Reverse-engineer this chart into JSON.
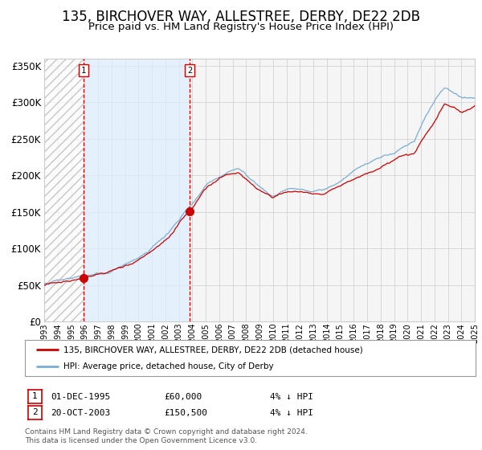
{
  "title": "135, BIRCHOVER WAY, ALLESTREE, DERBY, DE22 2DB",
  "subtitle": "Price paid vs. HM Land Registry's House Price Index (HPI)",
  "legend_line1": "135, BIRCHOVER WAY, ALLESTREE, DERBY, DE22 2DB (detached house)",
  "legend_line2": "HPI: Average price, detached house, City of Derby",
  "annotation1_date": "01-DEC-1995",
  "annotation1_price": "£60,000",
  "annotation1_hpi": "4% ↓ HPI",
  "annotation2_date": "20-OCT-2003",
  "annotation2_price": "£150,500",
  "annotation2_hpi": "4% ↓ HPI",
  "footnote": "Contains HM Land Registry data © Crown copyright and database right 2024.\nThis data is licensed under the Open Government Licence v3.0.",
  "start_year": 1993,
  "end_year": 2025,
  "ylim": [
    0,
    360000
  ],
  "yticks": [
    0,
    50000,
    100000,
    150000,
    200000,
    250000,
    300000,
    350000
  ],
  "sale1_year": 1995.917,
  "sale1_price": 60000,
  "sale2_year": 2003.792,
  "sale2_price": 150500,
  "red_color": "#cc0000",
  "blue_color": "#7aadd4",
  "shade_color": "#ddeeff",
  "grid_color": "#cccccc",
  "bg_color": "#ffffff",
  "chart_bg": "#f5f5f5",
  "title_fontsize": 12,
  "subtitle_fontsize": 9.5
}
